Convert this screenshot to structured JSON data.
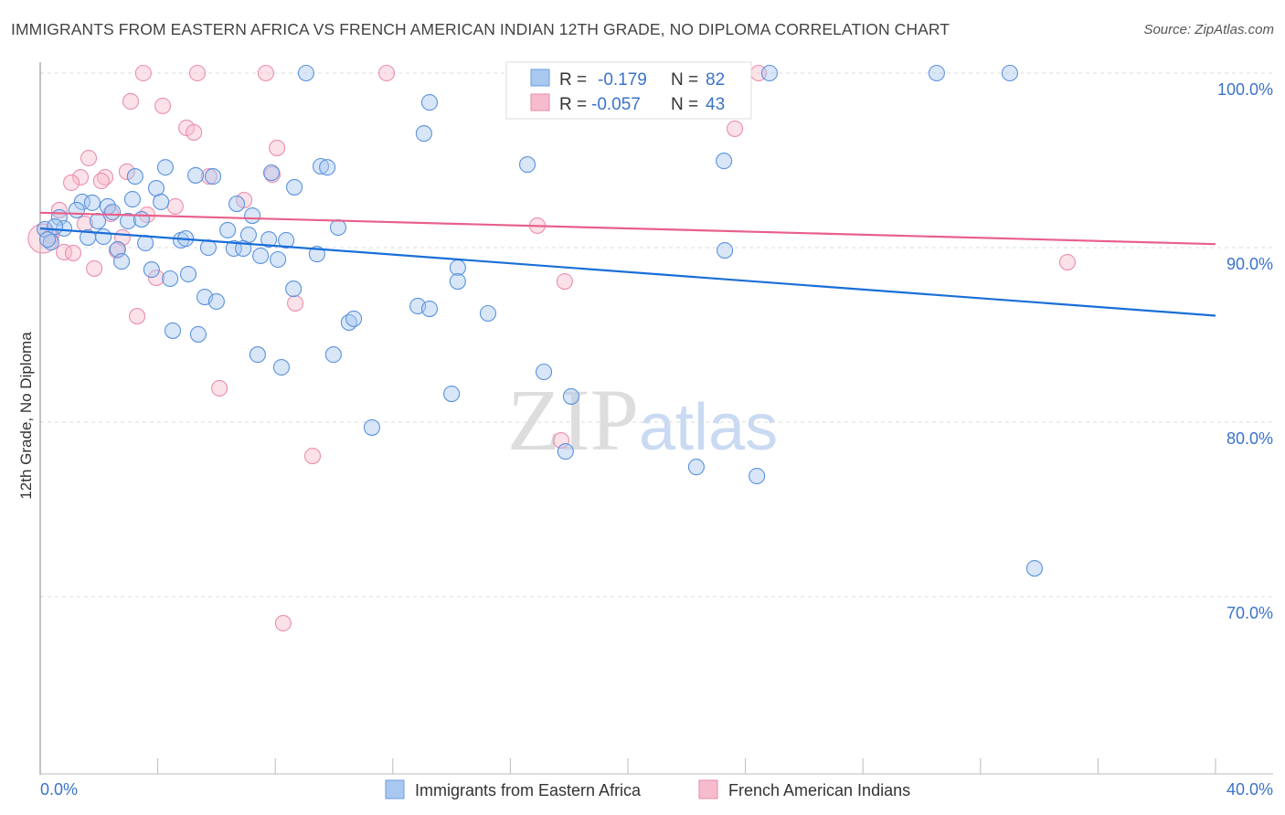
{
  "title": "IMMIGRANTS FROM EASTERN AFRICA VS FRENCH AMERICAN INDIAN 12TH GRADE, NO DIPLOMA CORRELATION CHART",
  "source": "Source: ZipAtlas.com",
  "watermark": "ZIPatlas",
  "colors": {
    "blue": "#1a6ed8",
    "pink": "#e8608a",
    "blue_fill": "#a9c8f0",
    "pink_fill": "#f6bccd",
    "label": "#3a73c9"
  },
  "legend": [
    {
      "r_label": "R =",
      "r": "-0.179",
      "n_label": "N =",
      "n": "82"
    },
    {
      "r_label": "R =",
      "r": "-0.057",
      "n_label": "N =",
      "n": "43"
    }
  ],
  "chart_data": {
    "type": "scatter",
    "title": "IMMIGRANTS FROM EASTERN AFRICA VS FRENCH AMERICAN INDIAN 12TH GRADE, NO DIPLOMA CORRELATION CHART",
    "xlabel": "",
    "ylabel": "12th Grade, No Diploma",
    "xlim": [
      0,
      40
    ],
    "ylim": [
      59.8,
      100.6
    ],
    "x_tick_labels": [
      "0.0%",
      "40.0%"
    ],
    "y_ticks": [
      100,
      90,
      80,
      70
    ],
    "y_tick_labels": [
      "100.0%",
      "90.0%",
      "80.0%",
      "70.0%"
    ],
    "grid": true,
    "legend_position": "top-center",
    "series": [
      {
        "name": "Immigrants from Eastern Africa",
        "color": "#1a6ed8",
        "trend": [
          [
            0,
            91.1
          ],
          [
            40,
            86.1
          ]
        ],
        "points": [
          [
            9.05,
            100
          ],
          [
            24.82,
            100
          ],
          [
            30.51,
            100
          ],
          [
            33.0,
            100
          ],
          [
            17.29,
            100
          ],
          [
            13.25,
            98.32
          ],
          [
            13.06,
            96.54
          ],
          [
            16.58,
            94.76
          ],
          [
            23.27,
            94.97
          ],
          [
            4.26,
            94.6
          ],
          [
            5.29,
            94.14
          ],
          [
            5.88,
            94.08
          ],
          [
            3.23,
            94.08
          ],
          [
            7.87,
            94.29
          ],
          [
            9.55,
            94.66
          ],
          [
            9.77,
            94.6
          ],
          [
            3.95,
            93.4
          ],
          [
            8.65,
            93.46
          ],
          [
            3.14,
            92.77
          ],
          [
            1.43,
            92.62
          ],
          [
            1.77,
            92.57
          ],
          [
            2.3,
            92.36
          ],
          [
            4.11,
            92.62
          ],
          [
            6.69,
            92.51
          ],
          [
            1.24,
            92.15
          ],
          [
            2.46,
            92.04
          ],
          [
            7.22,
            91.83
          ],
          [
            0.65,
            91.73
          ],
          [
            1.96,
            91.52
          ],
          [
            2.99,
            91.52
          ],
          [
            3.45,
            91.62
          ],
          [
            10.14,
            91.15
          ],
          [
            6.38,
            91.0
          ],
          [
            7.09,
            90.73
          ],
          [
            0.16,
            91.05
          ],
          [
            0.81,
            91.1
          ],
          [
            0.5,
            91.2
          ],
          [
            1.62,
            90.58
          ],
          [
            2.15,
            90.63
          ],
          [
            4.79,
            90.42
          ],
          [
            4.95,
            90.52
          ],
          [
            7.78,
            90.47
          ],
          [
            8.37,
            90.42
          ],
          [
            3.58,
            90.26
          ],
          [
            5.72,
            90.0
          ],
          [
            6.59,
            89.95
          ],
          [
            6.91,
            89.95
          ],
          [
            9.42,
            89.63
          ],
          [
            7.5,
            89.53
          ],
          [
            8.09,
            89.32
          ],
          [
            2.64,
            89.9
          ],
          [
            2.77,
            89.21
          ],
          [
            3.79,
            88.74
          ],
          [
            5.04,
            88.48
          ],
          [
            14.21,
            88.85
          ],
          [
            4.42,
            88.22
          ],
          [
            14.21,
            88.06
          ],
          [
            23.3,
            89.84
          ],
          [
            8.62,
            87.64
          ],
          [
            5.6,
            87.17
          ],
          [
            6.0,
            86.91
          ],
          [
            12.85,
            86.65
          ],
          [
            13.25,
            86.49
          ],
          [
            15.24,
            86.23
          ],
          [
            10.51,
            85.71
          ],
          [
            10.67,
            85.92
          ],
          [
            4.51,
            85.24
          ],
          [
            5.38,
            85.03
          ],
          [
            7.4,
            83.87
          ],
          [
            9.98,
            83.87
          ],
          [
            8.21,
            83.14
          ],
          [
            17.14,
            82.88
          ],
          [
            14.0,
            81.62
          ],
          [
            18.07,
            81.47
          ],
          [
            11.29,
            79.69
          ],
          [
            17.88,
            78.32
          ],
          [
            22.33,
            77.43
          ],
          [
            24.39,
            76.91
          ],
          [
            33.84,
            71.62
          ],
          [
            0.37,
            90.31
          ],
          [
            0.25,
            90.47
          ]
        ]
      },
      {
        "name": "French American Indians",
        "color": "#e8608a",
        "trend": [
          [
            0,
            92.0
          ],
          [
            40,
            90.2
          ]
        ],
        "points": [
          [
            3.51,
            100
          ],
          [
            5.35,
            100
          ],
          [
            7.68,
            100
          ],
          [
            11.79,
            100
          ],
          [
            24.45,
            100
          ],
          [
            3.08,
            98.38
          ],
          [
            4.17,
            98.12
          ],
          [
            4.98,
            96.86
          ],
          [
            5.23,
            96.6
          ],
          [
            8.06,
            95.71
          ],
          [
            23.64,
            96.81
          ],
          [
            1.65,
            95.13
          ],
          [
            1.37,
            94.03
          ],
          [
            1.06,
            93.72
          ],
          [
            2.21,
            94.03
          ],
          [
            2.08,
            93.82
          ],
          [
            2.95,
            94.35
          ],
          [
            7.9,
            94.19
          ],
          [
            5.75,
            94.08
          ],
          [
            6.94,
            92.72
          ],
          [
            0.65,
            92.15
          ],
          [
            4.6,
            92.36
          ],
          [
            3.64,
            91.88
          ],
          [
            2.4,
            91.94
          ],
          [
            1.52,
            91.36
          ],
          [
            16.92,
            91.26
          ],
          [
            2.8,
            90.58
          ],
          [
            0.37,
            90.68
          ],
          [
            0.81,
            89.74
          ],
          [
            1.12,
            89.69
          ],
          [
            2.61,
            89.84
          ],
          [
            1.84,
            88.8
          ],
          [
            3.95,
            88.27
          ],
          [
            17.85,
            88.06
          ],
          [
            8.68,
            86.81
          ],
          [
            3.3,
            86.07
          ],
          [
            6.1,
            81.94
          ],
          [
            17.73,
            78.95
          ],
          [
            9.27,
            78.06
          ],
          [
            8.27,
            68.48
          ],
          [
            34.96,
            89.16
          ],
          [
            0.09,
            90.52
          ]
        ]
      }
    ]
  }
}
